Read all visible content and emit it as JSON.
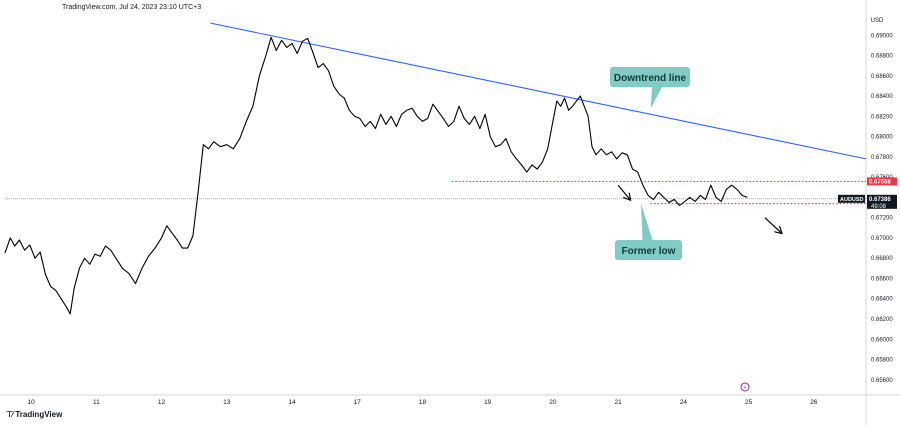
{
  "header": {
    "source_text": "TradingView.com, Jul 24, 2023 23:10 UTC+3"
  },
  "brand": {
    "name": "TradingView",
    "logo_icon": "tradingview-logo-icon"
  },
  "colors": {
    "price_line": "#000000",
    "trend_line": "#2962ff",
    "support_line": "#f23645",
    "callout_bg": "#80cbc4",
    "badge_current": "#131722",
    "badge_level": "#f23645"
  },
  "chart_data": {
    "type": "line",
    "symbol": "AUDUSD",
    "currency_label": "USD",
    "ylim": [
      0.6545,
      0.692
    ],
    "y_ticks": [
      "0.69000",
      "0.68800",
      "0.68600",
      "0.68400",
      "0.68200",
      "0.68000",
      "0.67800",
      "0.67600",
      "0.67400",
      "0.67200",
      "0.67000",
      "0.66800",
      "0.66600",
      "0.66400",
      "0.66200",
      "0.66000",
      "0.65800",
      "0.65600"
    ],
    "x_ticks": [
      {
        "label": "10",
        "pos": 0.4
      },
      {
        "label": "11",
        "pos": 1.4
      },
      {
        "label": "12",
        "pos": 2.4
      },
      {
        "label": "13",
        "pos": 3.4
      },
      {
        "label": "14",
        "pos": 4.4
      },
      {
        "label": "17",
        "pos": 5.4
      },
      {
        "label": "18",
        "pos": 6.4
      },
      {
        "label": "19",
        "pos": 7.4
      },
      {
        "label": "20",
        "pos": 8.4
      },
      {
        "label": "21",
        "pos": 9.4
      },
      {
        "label": "24",
        "pos": 10.4
      },
      {
        "label": "25",
        "pos": 11.4
      },
      {
        "label": "26",
        "pos": 12.4
      }
    ],
    "xlim": [
      0,
      13.2
    ],
    "series": [
      {
        "points": [
          [
            0.0,
            0.6685
          ],
          [
            0.08,
            0.67
          ],
          [
            0.15,
            0.6692
          ],
          [
            0.22,
            0.6698
          ],
          [
            0.3,
            0.6688
          ],
          [
            0.38,
            0.6693
          ],
          [
            0.46,
            0.668
          ],
          [
            0.54,
            0.6686
          ],
          [
            0.62,
            0.6664
          ],
          [
            0.7,
            0.6652
          ],
          [
            0.78,
            0.6648
          ],
          [
            0.86,
            0.664
          ],
          [
            0.94,
            0.6632
          ],
          [
            1.0,
            0.6625
          ],
          [
            1.06,
            0.665
          ],
          [
            1.14,
            0.667
          ],
          [
            1.22,
            0.668
          ],
          [
            1.3,
            0.6674
          ],
          [
            1.38,
            0.6684
          ],
          [
            1.46,
            0.6682
          ],
          [
            1.54,
            0.6692
          ],
          [
            1.62,
            0.6688
          ],
          [
            1.7,
            0.668
          ],
          [
            1.8,
            0.667
          ],
          [
            1.9,
            0.6665
          ],
          [
            2.0,
            0.6655
          ],
          [
            2.1,
            0.667
          ],
          [
            2.2,
            0.6682
          ],
          [
            2.3,
            0.669
          ],
          [
            2.4,
            0.67
          ],
          [
            2.48,
            0.6712
          ],
          [
            2.56,
            0.6705
          ],
          [
            2.64,
            0.6698
          ],
          [
            2.72,
            0.669
          ],
          [
            2.8,
            0.669
          ],
          [
            2.88,
            0.6702
          ],
          [
            2.96,
            0.6745
          ],
          [
            3.04,
            0.6792
          ],
          [
            3.12,
            0.6788
          ],
          [
            3.2,
            0.6795
          ],
          [
            3.3,
            0.679
          ],
          [
            3.4,
            0.6792
          ],
          [
            3.5,
            0.6788
          ],
          [
            3.6,
            0.6798
          ],
          [
            3.7,
            0.6815
          ],
          [
            3.8,
            0.683
          ],
          [
            3.9,
            0.686
          ],
          [
            4.0,
            0.688
          ],
          [
            4.08,
            0.6898
          ],
          [
            4.16,
            0.6885
          ],
          [
            4.24,
            0.6895
          ],
          [
            4.32,
            0.6888
          ],
          [
            4.4,
            0.6892
          ],
          [
            4.48,
            0.6882
          ],
          [
            4.56,
            0.6894
          ],
          [
            4.64,
            0.6897
          ],
          [
            4.72,
            0.6883
          ],
          [
            4.8,
            0.6868
          ],
          [
            4.88,
            0.6872
          ],
          [
            4.96,
            0.6865
          ],
          [
            5.04,
            0.685
          ],
          [
            5.12,
            0.6842
          ],
          [
            5.2,
            0.6838
          ],
          [
            5.28,
            0.6826
          ],
          [
            5.36,
            0.682
          ],
          [
            5.44,
            0.6818
          ],
          [
            5.52,
            0.681
          ],
          [
            5.6,
            0.6815
          ],
          [
            5.68,
            0.6808
          ],
          [
            5.76,
            0.6822
          ],
          [
            5.84,
            0.6812
          ],
          [
            5.92,
            0.682
          ],
          [
            6.0,
            0.681
          ],
          [
            6.08,
            0.6822
          ],
          [
            6.16,
            0.6826
          ],
          [
            6.24,
            0.6828
          ],
          [
            6.32,
            0.682
          ],
          [
            6.4,
            0.6815
          ],
          [
            6.48,
            0.6818
          ],
          [
            6.56,
            0.6832
          ],
          [
            6.64,
            0.6825
          ],
          [
            6.72,
            0.6818
          ],
          [
            6.8,
            0.681
          ],
          [
            6.88,
            0.6815
          ],
          [
            6.96,
            0.683
          ],
          [
            7.04,
            0.6818
          ],
          [
            7.12,
            0.6812
          ],
          [
            7.2,
            0.682
          ],
          [
            7.28,
            0.6808
          ],
          [
            7.36,
            0.6822
          ],
          [
            7.44,
            0.68
          ],
          [
            7.52,
            0.679
          ],
          [
            7.6,
            0.6792
          ],
          [
            7.68,
            0.6798
          ],
          [
            7.76,
            0.6785
          ],
          [
            7.84,
            0.6778
          ],
          [
            7.92,
            0.6772
          ],
          [
            8.0,
            0.6765
          ],
          [
            8.08,
            0.6772
          ],
          [
            8.16,
            0.6768
          ],
          [
            8.24,
            0.6775
          ],
          [
            8.32,
            0.6788
          ],
          [
            8.4,
            0.6815
          ],
          [
            8.46,
            0.6835
          ],
          [
            8.52,
            0.683
          ],
          [
            8.58,
            0.6838
          ],
          [
            8.64,
            0.6826
          ],
          [
            8.7,
            0.683
          ],
          [
            8.76,
            0.6835
          ],
          [
            8.82,
            0.684
          ],
          [
            8.88,
            0.683
          ],
          [
            8.94,
            0.682
          ],
          [
            9.0,
            0.679
          ],
          [
            9.06,
            0.6782
          ],
          [
            9.14,
            0.6788
          ],
          [
            9.22,
            0.6782
          ],
          [
            9.3,
            0.6785
          ],
          [
            9.38,
            0.6778
          ],
          [
            9.46,
            0.6784
          ],
          [
            9.54,
            0.6782
          ],
          [
            9.62,
            0.6768
          ],
          [
            9.7,
            0.6765
          ],
          [
            9.78,
            0.6752
          ],
          [
            9.86,
            0.6742
          ],
          [
            9.94,
            0.6738
          ],
          [
            10.02,
            0.6745
          ],
          [
            10.1,
            0.674
          ],
          [
            10.18,
            0.6735
          ],
          [
            10.26,
            0.6738
          ],
          [
            10.34,
            0.6732
          ],
          [
            10.42,
            0.6736
          ],
          [
            10.5,
            0.674
          ],
          [
            10.58,
            0.6736
          ],
          [
            10.66,
            0.6742
          ],
          [
            10.74,
            0.6738
          ],
          [
            10.82,
            0.6752
          ],
          [
            10.9,
            0.674
          ],
          [
            10.98,
            0.6736
          ],
          [
            11.06,
            0.6748
          ],
          [
            11.14,
            0.6752
          ],
          [
            11.22,
            0.6748
          ],
          [
            11.3,
            0.6742
          ],
          [
            11.38,
            0.674
          ]
        ]
      }
    ],
    "trend_line": {
      "from": [
        3.15,
        0.6912
      ],
      "to": [
        13.2,
        0.6778
      ]
    },
    "support_lines": [
      {
        "from": [
          6.85,
          0.67558
        ],
        "to": [
          13.2,
          0.67558
        ],
        "label": "0.67558"
      },
      {
        "from": [
          9.9,
          0.67339
        ],
        "to": [
          13.2,
          0.67339
        ],
        "label": "0.67339"
      }
    ],
    "current_price": {
      "value": 0.67386,
      "label": "0.67386",
      "countdown": "49:08"
    },
    "annotations": [
      {
        "text": "Downtrend line",
        "anchor": [
          9.9,
          0.6828
        ]
      },
      {
        "text": "Former low",
        "anchor": [
          9.75,
          0.6734
        ]
      }
    ],
    "arrows": [
      {
        "from": [
          9.4,
          0.6752
        ],
        "to": [
          9.58,
          0.6738
        ]
      },
      {
        "from": [
          11.65,
          0.672
        ],
        "to": [
          11.9,
          0.6705
        ]
      }
    ]
  }
}
